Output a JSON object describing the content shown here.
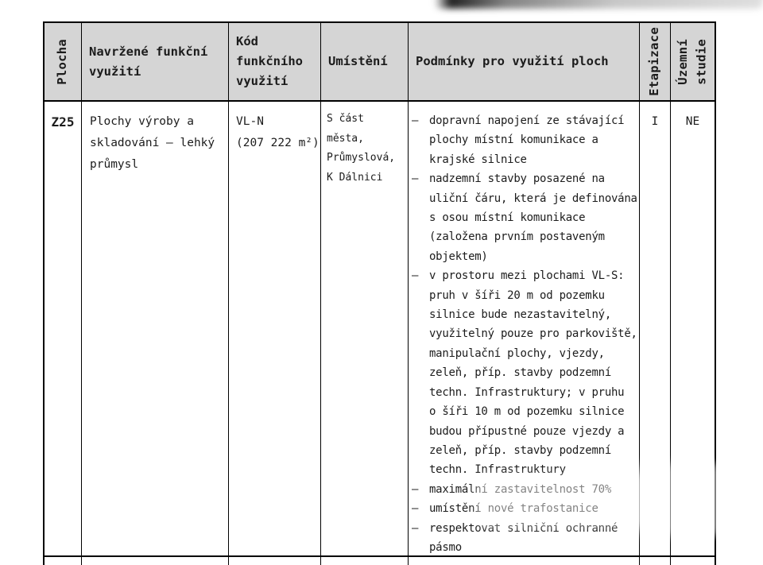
{
  "table": {
    "headers": {
      "plocha": "Plocha",
      "navrzene_vyuziti": "Navržené funkční\nvyužití",
      "kod": "Kód\nfunkčního\nvyužití",
      "umisteni": "Umístění",
      "podminky": "Podmínky pro využití ploch",
      "etapizace": "Etapizace",
      "uzemni_studie": "Územní\nstudie"
    },
    "row": {
      "plocha": "Z25",
      "navrzene_vyuziti": "Plochy výroby a\nskladování – lehký\nprůmysl",
      "kod": "VL-N\n(207 222 m²)",
      "umisteni": "S část\nměsta,\nPrůmyslová,\nK Dálnici",
      "dash_marker": "–",
      "podminky": [
        "dopravní napojení ze stávající\nplochy místní komunikace a\nkrajské silnice",
        "nadzemní stavby posazené na\nuliční čáru, která je definována\ns osou místní komunikace\n(založena prvním postaveným\nobjektem)",
        "v prostoru mezi plochami VL-S:\npruh v šíři 20 m od pozemku\nsilnice bude nezastavitelný,\nvyužitelný pouze pro parkoviště,\nmanipulační plochy, vjezdy,\nzeleň, příp. stavby podzemní\ntechn. Infrastruktury; v pruhu\no šíři 10 m od pozemku silnice\nbudou přípustné pouze vjezdy a\nzeleň, příp. stavby podzemní\ntechn. Infrastruktury",
        "maximální zastavitelnost 70%",
        "umístění nové trafostanice",
        "respektovat silniční ochranné\npásmo"
      ],
      "etapizace": "I",
      "uzemni_studie": "NE"
    }
  },
  "colors": {
    "page_bg": "#ffffff",
    "header_bg": "#d5d5d5",
    "border": "#000000",
    "text": "#1c1c1c"
  }
}
